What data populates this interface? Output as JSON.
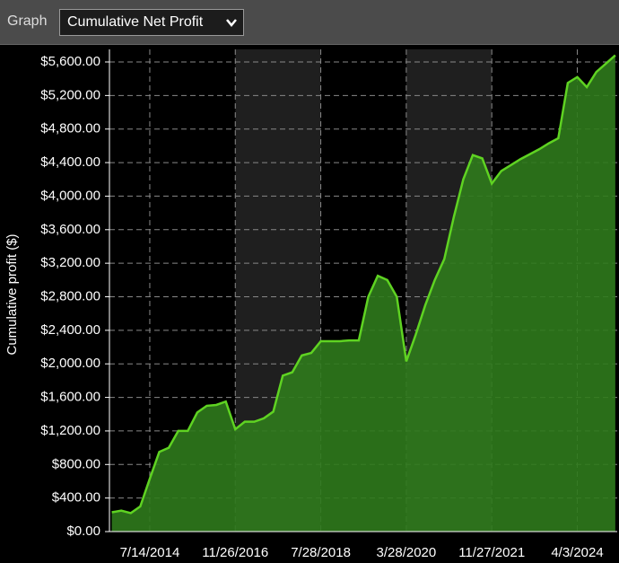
{
  "header": {
    "label": "Graph",
    "selected": "Cumulative Net Profit"
  },
  "chart_data": {
    "type": "area",
    "ylabel": "Cumulative profit ($)",
    "categories": [
      null,
      null,
      null,
      null,
      "7/14/2014",
      null,
      null,
      null,
      null,
      null,
      null,
      null,
      null,
      "11/26/2016",
      null,
      null,
      null,
      null,
      null,
      null,
      null,
      null,
      "7/28/2018",
      null,
      null,
      null,
      null,
      null,
      null,
      null,
      null,
      "3/28/2020",
      null,
      null,
      null,
      null,
      null,
      null,
      null,
      null,
      "11/27/2021",
      null,
      null,
      null,
      null,
      null,
      null,
      null,
      null,
      "4/3/2024",
      null,
      null,
      null,
      null
    ],
    "series": [
      {
        "name": "Cumulative Net Profit",
        "color": "#5fd322",
        "fill": "#2f7a1c",
        "values": [
          230,
          250,
          220,
          300,
          630,
          950,
          1000,
          1200,
          1200,
          1420,
          1500,
          1510,
          1550,
          1220,
          1310,
          1310,
          1350,
          1430,
          1860,
          1900,
          2100,
          2130,
          2270,
          2270,
          2270,
          2280,
          2280,
          2800,
          3050,
          3000,
          2800,
          2030,
          2350,
          2700,
          3000,
          3250,
          3750,
          4200,
          4490,
          4450,
          4150,
          4300,
          4370,
          4440,
          4500,
          4560,
          4630,
          4690,
          5350,
          5420,
          5300,
          5480,
          5580,
          5680
        ]
      }
    ],
    "ylim": [
      0,
      5750
    ],
    "yticks": [
      {
        "value": 0,
        "label": "$0.00"
      },
      {
        "value": 400,
        "label": "$400.00"
      },
      {
        "value": 800,
        "label": "$800.00"
      },
      {
        "value": 1200,
        "label": "$1,200.00"
      },
      {
        "value": 1600,
        "label": "$1,600.00"
      },
      {
        "value": 2000,
        "label": "$2,000.00"
      },
      {
        "value": 2400,
        "label": "$2,400.00"
      },
      {
        "value": 2800,
        "label": "$2,800.00"
      },
      {
        "value": 3200,
        "label": "$3,200.00"
      },
      {
        "value": 3600,
        "label": "$3,600.00"
      },
      {
        "value": 4000,
        "label": "$4,000.00"
      },
      {
        "value": 4400,
        "label": "$4,400.00"
      },
      {
        "value": 4800,
        "label": "$4,800.00"
      },
      {
        "value": 5200,
        "label": "$5,200.00"
      },
      {
        "value": 5600,
        "label": "$5,600.00"
      }
    ],
    "grid": true
  }
}
